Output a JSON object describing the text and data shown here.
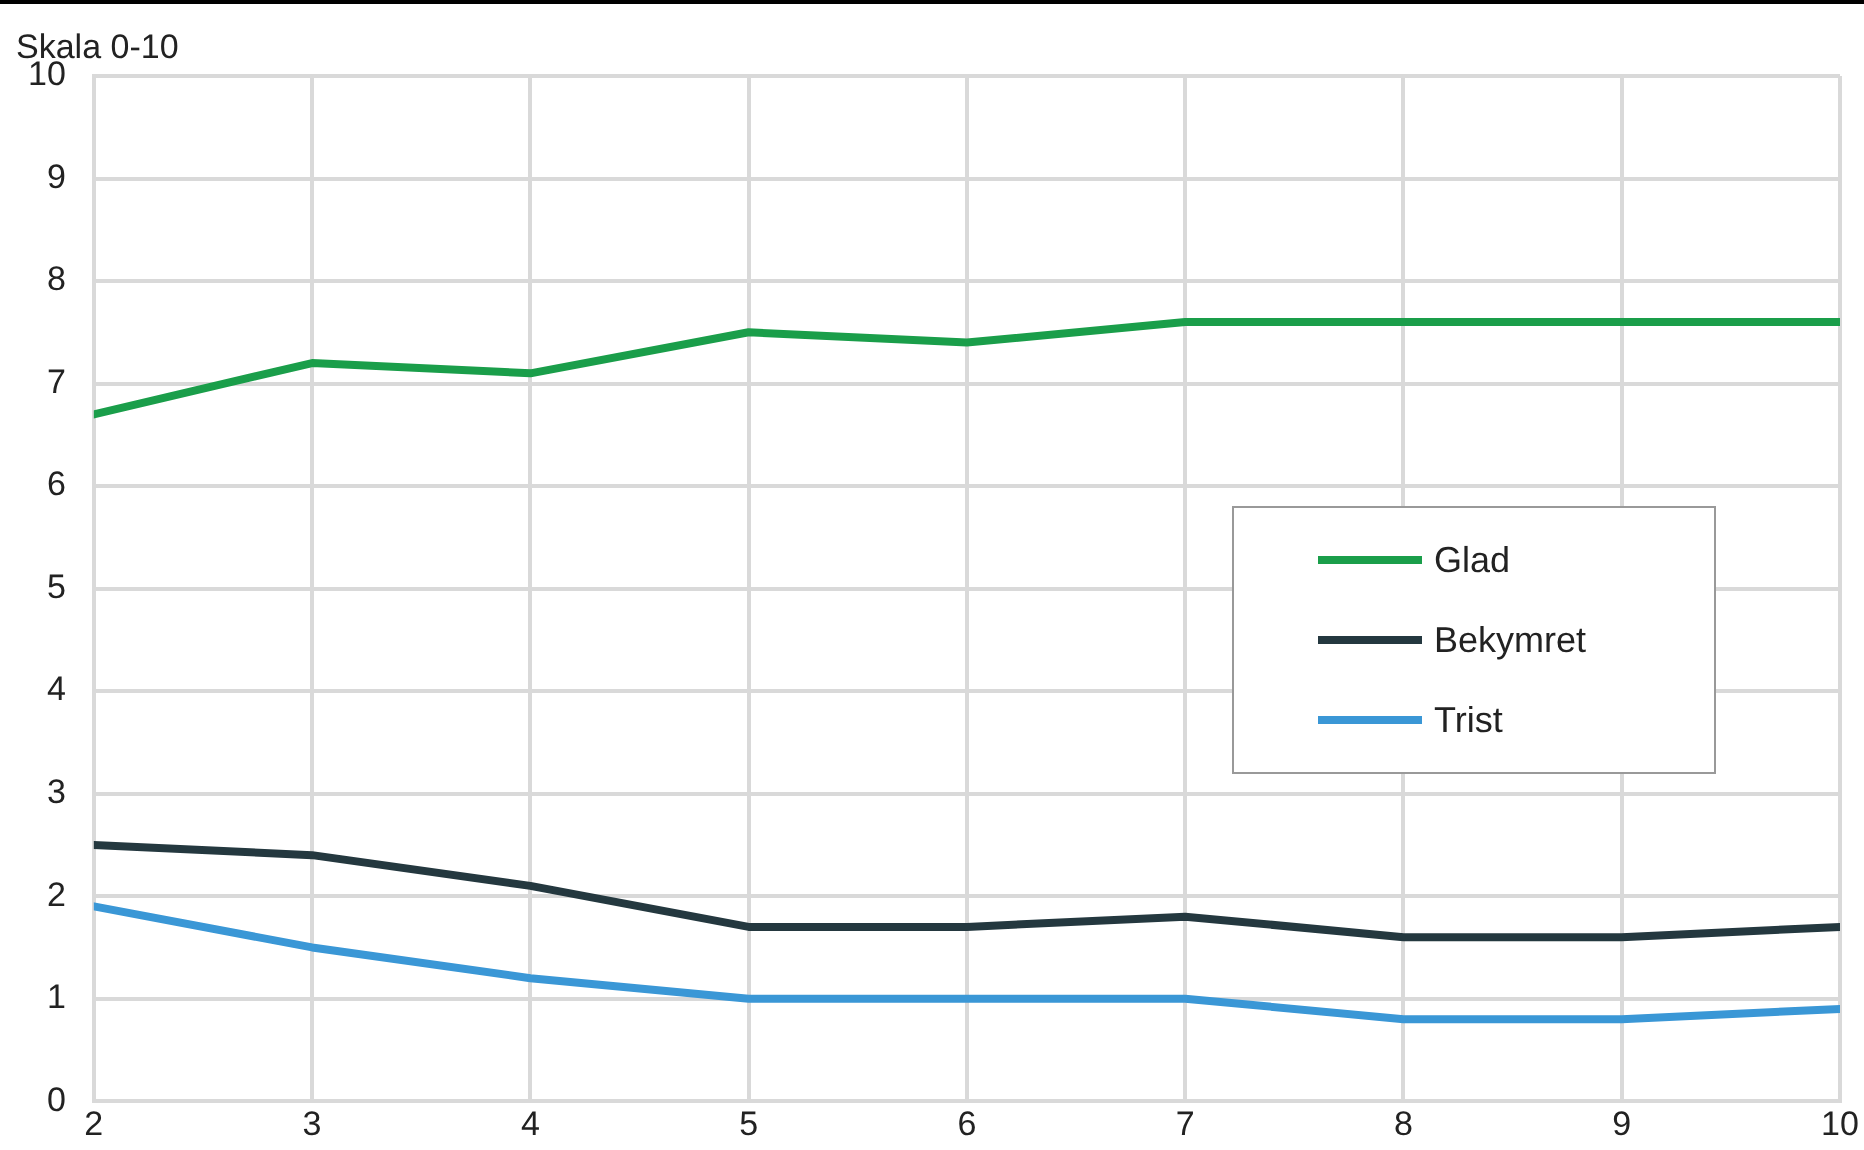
{
  "chart_data": {
    "type": "line",
    "ylabel": "Skala 0-10",
    "x": [
      2,
      3,
      4,
      5,
      6,
      7,
      8,
      9,
      10
    ],
    "series": [
      {
        "name": "Glad",
        "color": "#1a9e4a",
        "values": [
          6.7,
          7.2,
          7.1,
          7.5,
          7.4,
          7.6,
          7.6,
          7.6,
          7.6
        ]
      },
      {
        "name": "Bekymret",
        "color": "#24383f",
        "values": [
          2.5,
          2.4,
          2.1,
          1.7,
          1.7,
          1.8,
          1.6,
          1.6,
          1.7
        ]
      },
      {
        "name": "Trist",
        "color": "#3a97d6",
        "values": [
          1.9,
          1.5,
          1.2,
          1.0,
          1.0,
          1.0,
          0.8,
          0.8,
          0.9
        ]
      }
    ],
    "xlim": [
      2,
      10
    ],
    "xticks": [
      2,
      3,
      4,
      5,
      6,
      7,
      8,
      9,
      10
    ],
    "ylim": [
      0,
      10
    ],
    "yticks": [
      0,
      1,
      2,
      3,
      4,
      5,
      6,
      7,
      8,
      9,
      10
    ],
    "grid": true,
    "legend": "right",
    "marker": "none",
    "line_style": "solid"
  }
}
